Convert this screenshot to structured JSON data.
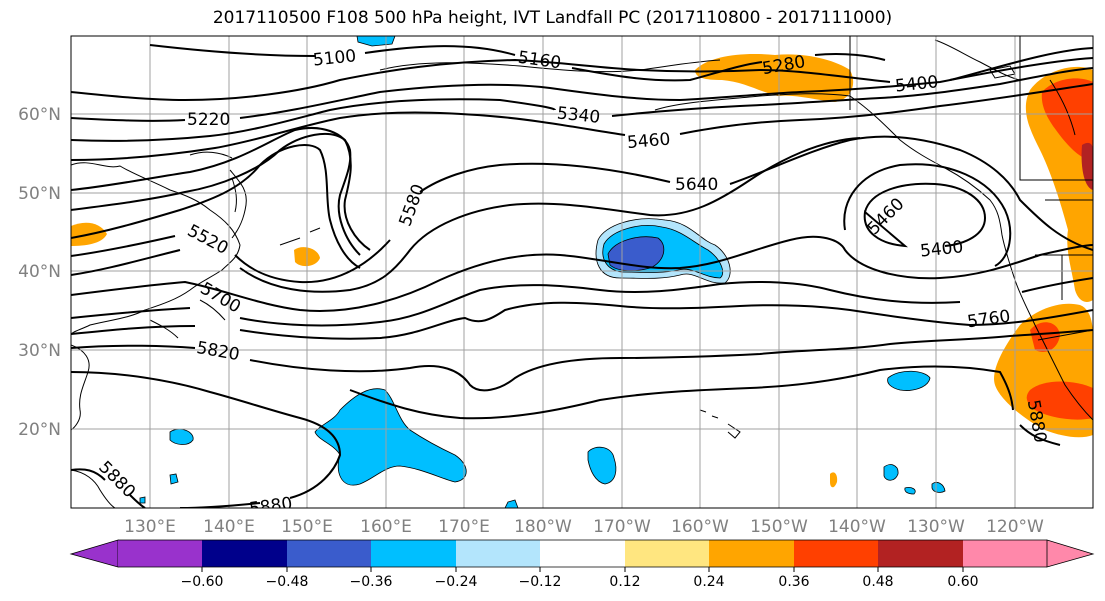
{
  "title": "2017110500 F108 500 hPa height, IVT Landfall PC (2017110800 - 2017111000)",
  "map": {
    "lat_labels": [
      "60°N",
      "50°N",
      "40°N",
      "30°N",
      "20°N"
    ],
    "lon_labels": [
      "130°E",
      "140°E",
      "150°E",
      "160°E",
      "170°E",
      "180°W",
      "170°W",
      "160°W",
      "150°W",
      "140°W",
      "130°W",
      "120°W"
    ],
    "contour_labels": [
      "5100",
      "5160",
      "5280",
      "5400",
      "5220",
      "5340",
      "5460",
      "5640",
      "5580",
      "5460",
      "5400",
      "5520",
      "5700",
      "5760",
      "5820",
      "5880",
      "5880",
      "5880"
    ],
    "colors": {
      "negative_light": "#b3e5fc",
      "negative_mid": "#00bfff",
      "negative_strong": "#3a5ccc",
      "positive_light": "#ffe680",
      "positive_mid": "#ffa500",
      "positive_strong": "#ff4000",
      "positive_darkest": "#b22222",
      "grid": "#a0a0a0"
    }
  },
  "colorbar": {
    "ticks": [
      "−0.60",
      "−0.48",
      "−0.36",
      "−0.24",
      "−0.12",
      "0.12",
      "0.24",
      "0.36",
      "0.48",
      "0.60"
    ],
    "colors": [
      "#9932cc",
      "#00008b",
      "#3a5ccc",
      "#00bfff",
      "#b3e5fc",
      "#ffffff",
      "#ffe680",
      "#ffa500",
      "#ff4000",
      "#b22222",
      "#ff88aa"
    ]
  }
}
